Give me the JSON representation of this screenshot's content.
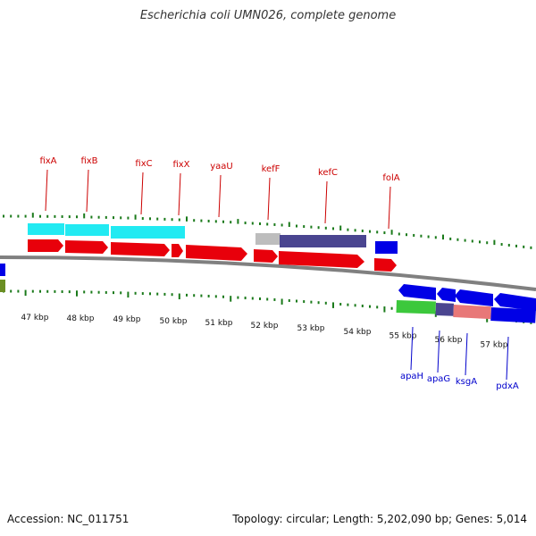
{
  "title": "Escherichia coli UMN026, complete genome",
  "footer": {
    "accession": "Accession: NC_011751",
    "summary": "Topology: circular; Length: 5,202,090 bp; Genes: 5,014"
  },
  "colors": {
    "forward_gene": "#e8000b",
    "reverse_gene": "#0000e6",
    "tick": "#1a7a1a",
    "forward_label": "#cc0000",
    "reverse_label": "#0000cc",
    "cyan": "#22eaf2",
    "slate": "#4a4590",
    "grey": "#bdbdbd",
    "green": "#3cc83c",
    "salmon": "#e87878",
    "olive": "#6b8e23",
    "backbone": "#808080"
  },
  "scale": {
    "labels": [
      "47 kbp",
      "48 kbp",
      "49 kbp",
      "50 kbp",
      "51 kbp",
      "52 kbp",
      "53 kbp",
      "54 kbp",
      "55 kbp",
      "56 kbp",
      "57 kbp"
    ]
  },
  "forward_genes": [
    {
      "name": "fixA"
    },
    {
      "name": "fixB"
    },
    {
      "name": "fixC"
    },
    {
      "name": "fixX"
    },
    {
      "name": "yaaU"
    },
    {
      "name": "kefF"
    },
    {
      "name": "kefC"
    },
    {
      "name": "folA"
    }
  ],
  "reverse_genes": [
    {
      "name": "apaH"
    },
    {
      "name": "apaG"
    },
    {
      "name": "ksgA"
    },
    {
      "name": "pdxA"
    }
  ]
}
